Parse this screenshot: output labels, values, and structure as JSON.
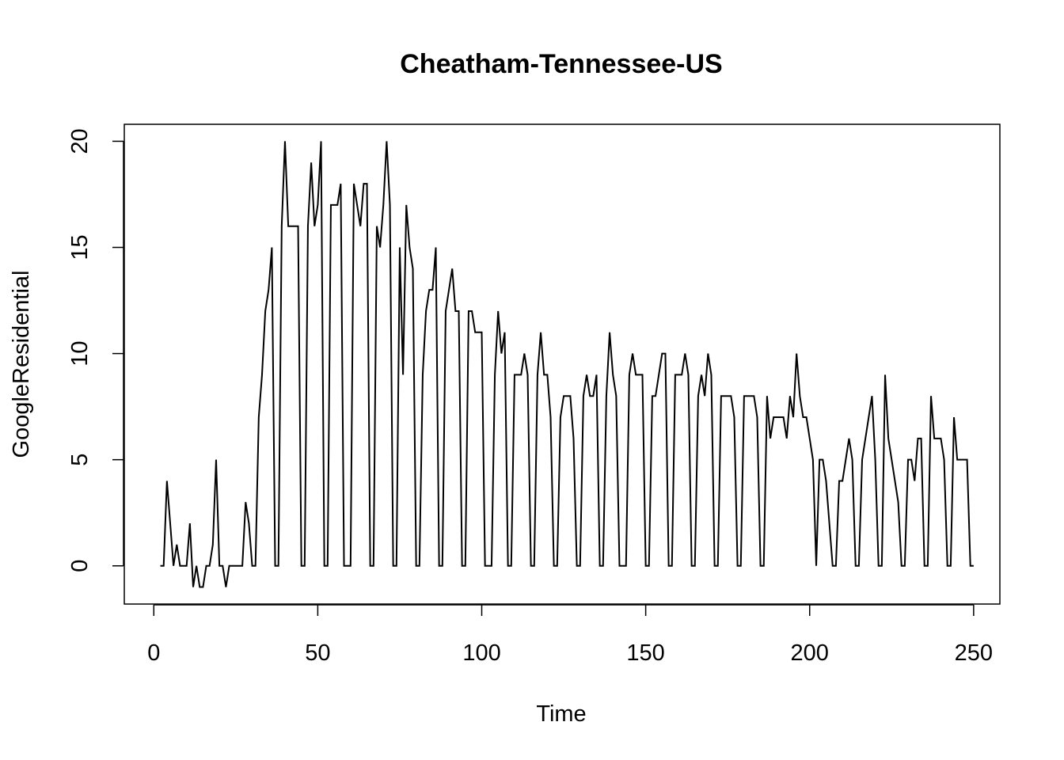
{
  "chart_data": {
    "type": "line",
    "title": "Cheatham-Tennessee-US",
    "xlabel": "Time",
    "ylabel": "GoogleResidential",
    "xlim": [
      -9,
      258
    ],
    "ylim": [
      -1.8,
      20.8
    ],
    "xticks": [
      0,
      50,
      100,
      150,
      200,
      250
    ],
    "yticks": [
      0,
      5,
      10,
      15,
      20
    ],
    "xtick_labels": [
      "0",
      "50",
      "100",
      "150",
      "200",
      "250"
    ],
    "ytick_labels": [
      "0",
      "5",
      "10",
      "15",
      "20"
    ],
    "grid": false,
    "line_color": "#000000",
    "series": [
      {
        "x_start": 2,
        "values": [
          0,
          0,
          4,
          2,
          0,
          1,
          0,
          0,
          0,
          2,
          -1,
          0,
          -1,
          -1,
          0,
          0,
          1,
          5,
          0,
          0,
          -1,
          0,
          0,
          0,
          0,
          0,
          3,
          2,
          0,
          0,
          7,
          9,
          12,
          13,
          15,
          0,
          0,
          16,
          20,
          16,
          16,
          16,
          16,
          0,
          0,
          16,
          19,
          16,
          17,
          20,
          0,
          0,
          17,
          17,
          17,
          18,
          0,
          0,
          0,
          18,
          17,
          16,
          18,
          18,
          0,
          0,
          16,
          15,
          17,
          20,
          17,
          0,
          0,
          15,
          9,
          17,
          15,
          14,
          0,
          0,
          9,
          12,
          13,
          13,
          15,
          0,
          0,
          12,
          13,
          14,
          12,
          12,
          0,
          0,
          12,
          12,
          11,
          11,
          11,
          0,
          0,
          0,
          9,
          12,
          10,
          11,
          0,
          0,
          9,
          9,
          9,
          10,
          9,
          0,
          0,
          9,
          11,
          9,
          9,
          7,
          0,
          0,
          7,
          8,
          8,
          8,
          6,
          0,
          0,
          8,
          9,
          8,
          8,
          9,
          0,
          0,
          8,
          11,
          9,
          8,
          0,
          0,
          0,
          9,
          10,
          9,
          9,
          9,
          0,
          0,
          8,
          8,
          9,
          10,
          10,
          0,
          0,
          9,
          9,
          9,
          10,
          9,
          0,
          0,
          8,
          9,
          8,
          10,
          9,
          0,
          0,
          8,
          8,
          8,
          8,
          7,
          0,
          0,
          8,
          8,
          8,
          8,
          7,
          0,
          0,
          8,
          6,
          7,
          7,
          7,
          7,
          6,
          8,
          7,
          10,
          8,
          7,
          7,
          6,
          5,
          0,
          5,
          5,
          4,
          2,
          0,
          0,
          4,
          4,
          5,
          6,
          5,
          0,
          0,
          5,
          6,
          7,
          8,
          5,
          0,
          0,
          9,
          6,
          5,
          4,
          3,
          0,
          0,
          5,
          5,
          4,
          6,
          6,
          0,
          0,
          8,
          6,
          6,
          6,
          5,
          0,
          0,
          7,
          5,
          5,
          5,
          5,
          0,
          0
        ]
      }
    ]
  }
}
